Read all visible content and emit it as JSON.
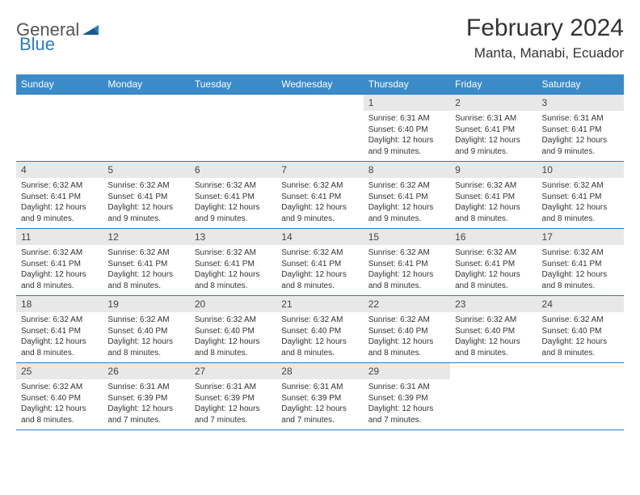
{
  "logo": {
    "word1": "General",
    "word2": "Blue"
  },
  "header": {
    "month_title": "February 2024",
    "location": "Manta, Manabi, Ecuador"
  },
  "colors": {
    "header_bg": "#3b8bc9",
    "header_text": "#ffffff",
    "rule": "#2b7bbf",
    "daynum_bg": "#e8e8e8",
    "text": "#333333",
    "logo_gray": "#555555",
    "logo_blue": "#2b7bbf"
  },
  "day_headers": [
    "Sunday",
    "Monday",
    "Tuesday",
    "Wednesday",
    "Thursday",
    "Friday",
    "Saturday"
  ],
  "weeks": [
    [
      null,
      null,
      null,
      null,
      {
        "n": "1",
        "sunrise": "Sunrise: 6:31 AM",
        "sunset": "Sunset: 6:40 PM",
        "day": "Daylight: 12 hours and 9 minutes."
      },
      {
        "n": "2",
        "sunrise": "Sunrise: 6:31 AM",
        "sunset": "Sunset: 6:41 PM",
        "day": "Daylight: 12 hours and 9 minutes."
      },
      {
        "n": "3",
        "sunrise": "Sunrise: 6:31 AM",
        "sunset": "Sunset: 6:41 PM",
        "day": "Daylight: 12 hours and 9 minutes."
      }
    ],
    [
      {
        "n": "4",
        "sunrise": "Sunrise: 6:32 AM",
        "sunset": "Sunset: 6:41 PM",
        "day": "Daylight: 12 hours and 9 minutes."
      },
      {
        "n": "5",
        "sunrise": "Sunrise: 6:32 AM",
        "sunset": "Sunset: 6:41 PM",
        "day": "Daylight: 12 hours and 9 minutes."
      },
      {
        "n": "6",
        "sunrise": "Sunrise: 6:32 AM",
        "sunset": "Sunset: 6:41 PM",
        "day": "Daylight: 12 hours and 9 minutes."
      },
      {
        "n": "7",
        "sunrise": "Sunrise: 6:32 AM",
        "sunset": "Sunset: 6:41 PM",
        "day": "Daylight: 12 hours and 9 minutes."
      },
      {
        "n": "8",
        "sunrise": "Sunrise: 6:32 AM",
        "sunset": "Sunset: 6:41 PM",
        "day": "Daylight: 12 hours and 9 minutes."
      },
      {
        "n": "9",
        "sunrise": "Sunrise: 6:32 AM",
        "sunset": "Sunset: 6:41 PM",
        "day": "Daylight: 12 hours and 8 minutes."
      },
      {
        "n": "10",
        "sunrise": "Sunrise: 6:32 AM",
        "sunset": "Sunset: 6:41 PM",
        "day": "Daylight: 12 hours and 8 minutes."
      }
    ],
    [
      {
        "n": "11",
        "sunrise": "Sunrise: 6:32 AM",
        "sunset": "Sunset: 6:41 PM",
        "day": "Daylight: 12 hours and 8 minutes."
      },
      {
        "n": "12",
        "sunrise": "Sunrise: 6:32 AM",
        "sunset": "Sunset: 6:41 PM",
        "day": "Daylight: 12 hours and 8 minutes."
      },
      {
        "n": "13",
        "sunrise": "Sunrise: 6:32 AM",
        "sunset": "Sunset: 6:41 PM",
        "day": "Daylight: 12 hours and 8 minutes."
      },
      {
        "n": "14",
        "sunrise": "Sunrise: 6:32 AM",
        "sunset": "Sunset: 6:41 PM",
        "day": "Daylight: 12 hours and 8 minutes."
      },
      {
        "n": "15",
        "sunrise": "Sunrise: 6:32 AM",
        "sunset": "Sunset: 6:41 PM",
        "day": "Daylight: 12 hours and 8 minutes."
      },
      {
        "n": "16",
        "sunrise": "Sunrise: 6:32 AM",
        "sunset": "Sunset: 6:41 PM",
        "day": "Daylight: 12 hours and 8 minutes."
      },
      {
        "n": "17",
        "sunrise": "Sunrise: 6:32 AM",
        "sunset": "Sunset: 6:41 PM",
        "day": "Daylight: 12 hours and 8 minutes."
      }
    ],
    [
      {
        "n": "18",
        "sunrise": "Sunrise: 6:32 AM",
        "sunset": "Sunset: 6:41 PM",
        "day": "Daylight: 12 hours and 8 minutes."
      },
      {
        "n": "19",
        "sunrise": "Sunrise: 6:32 AM",
        "sunset": "Sunset: 6:40 PM",
        "day": "Daylight: 12 hours and 8 minutes."
      },
      {
        "n": "20",
        "sunrise": "Sunrise: 6:32 AM",
        "sunset": "Sunset: 6:40 PM",
        "day": "Daylight: 12 hours and 8 minutes."
      },
      {
        "n": "21",
        "sunrise": "Sunrise: 6:32 AM",
        "sunset": "Sunset: 6:40 PM",
        "day": "Daylight: 12 hours and 8 minutes."
      },
      {
        "n": "22",
        "sunrise": "Sunrise: 6:32 AM",
        "sunset": "Sunset: 6:40 PM",
        "day": "Daylight: 12 hours and 8 minutes."
      },
      {
        "n": "23",
        "sunrise": "Sunrise: 6:32 AM",
        "sunset": "Sunset: 6:40 PM",
        "day": "Daylight: 12 hours and 8 minutes."
      },
      {
        "n": "24",
        "sunrise": "Sunrise: 6:32 AM",
        "sunset": "Sunset: 6:40 PM",
        "day": "Daylight: 12 hours and 8 minutes."
      }
    ],
    [
      {
        "n": "25",
        "sunrise": "Sunrise: 6:32 AM",
        "sunset": "Sunset: 6:40 PM",
        "day": "Daylight: 12 hours and 8 minutes."
      },
      {
        "n": "26",
        "sunrise": "Sunrise: 6:31 AM",
        "sunset": "Sunset: 6:39 PM",
        "day": "Daylight: 12 hours and 7 minutes."
      },
      {
        "n": "27",
        "sunrise": "Sunrise: 6:31 AM",
        "sunset": "Sunset: 6:39 PM",
        "day": "Daylight: 12 hours and 7 minutes."
      },
      {
        "n": "28",
        "sunrise": "Sunrise: 6:31 AM",
        "sunset": "Sunset: 6:39 PM",
        "day": "Daylight: 12 hours and 7 minutes."
      },
      {
        "n": "29",
        "sunrise": "Sunrise: 6:31 AM",
        "sunset": "Sunset: 6:39 PM",
        "day": "Daylight: 12 hours and 7 minutes."
      },
      null,
      null
    ]
  ]
}
